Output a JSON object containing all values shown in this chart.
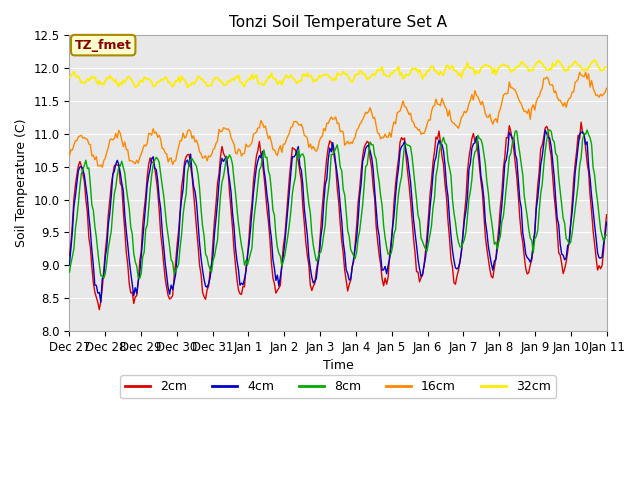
{
  "title": "Tonzi Soil Temperature Set A",
  "xlabel": "Time",
  "ylabel": "Soil Temperature (C)",
  "ylim": [
    8.0,
    12.5
  ],
  "xlim": [
    0,
    15
  ],
  "background_color": "#ffffff",
  "plot_bg_color": "#e8e8e8",
  "annotation_text": "TZ_fmet",
  "annotation_bg": "#ffffcc",
  "annotation_border": "#aa8800",
  "annotation_text_color": "#880000",
  "x_tick_labels": [
    "Dec 27",
    "Dec 28",
    "Dec 29",
    "Dec 30",
    "Dec 31",
    "Jan 1",
    "Jan 2",
    "Jan 3",
    "Jan 4",
    "Jan 5",
    "Jan 6",
    "Jan 7",
    "Jan 8",
    "Jan 9",
    "Jan 10",
    "Jan 11"
  ],
  "colors": {
    "2cm": "#dd0000",
    "4cm": "#0000cc",
    "8cm": "#00aa00",
    "16cm": "#ff8800",
    "32cm": "#ffee00"
  },
  "seed": 42,
  "n_days": 15,
  "hrs_per_day": 24
}
